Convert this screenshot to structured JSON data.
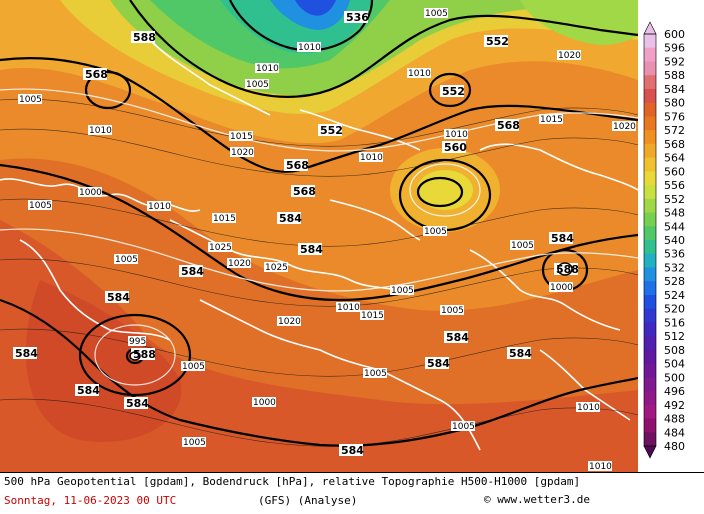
{
  "footer": {
    "line1": "500 hPa Geopotential [gpdam], Bodendruck [hPa], relative Topographie H500-H1000 [gpdam]",
    "date": "Sonntag, 11-06-2023  00 UTC",
    "model": "(GFS)  (Analyse)",
    "copyright": "www.wetter3.de"
  },
  "legend": {
    "values": [
      "600",
      "596",
      "592",
      "588",
      "584",
      "580",
      "576",
      "572",
      "568",
      "564",
      "560",
      "556",
      "552",
      "548",
      "544",
      "540",
      "536",
      "532",
      "528",
      "524",
      "520",
      "516",
      "512",
      "508",
      "504",
      "500",
      "496",
      "492",
      "488",
      "484",
      "480"
    ],
    "colors": [
      "#e8c0e8",
      "#f0a0c8",
      "#e890b0",
      "#e07070",
      "#d85050",
      "#e06428",
      "#e87820",
      "#f09020",
      "#f0a828",
      "#f0c030",
      "#e8d838",
      "#c8e040",
      "#a0d848",
      "#78d050",
      "#50c868",
      "#30c090",
      "#20b0c0",
      "#2090e0",
      "#2070e8",
      "#2050e0",
      "#3038d0",
      "#4028c0",
      "#5020b0",
      "#6018a0",
      "#701898",
      "#801890",
      "#901888",
      "#a01880",
      "#901070",
      "#701060",
      "#500850"
    ]
  },
  "map": {
    "geopotential_labels": [
      {
        "t": "588"
      },
      {
        "t": "568"
      },
      {
        "t": "552"
      },
      {
        "t": "552"
      },
      {
        "t": "552"
      },
      {
        "t": "560"
      },
      {
        "t": "568"
      },
      {
        "t": "568"
      },
      {
        "t": "568"
      },
      {
        "t": "584"
      },
      {
        "t": "584"
      },
      {
        "t": "584"
      },
      {
        "t": "584"
      },
      {
        "t": "588"
      },
      {
        "t": "584"
      },
      {
        "t": "584"
      },
      {
        "t": "584"
      },
      {
        "t": "584"
      },
      {
        "t": "584"
      },
      {
        "t": "584"
      },
      {
        "t": "584"
      },
      {
        "t": "584"
      },
      {
        "t": "588"
      },
      {
        "t": "536"
      }
    ],
    "pressure_labels": [
      "1005",
      "1010",
      "1015",
      "1020",
      "1025",
      "1000",
      "995"
    ]
  }
}
